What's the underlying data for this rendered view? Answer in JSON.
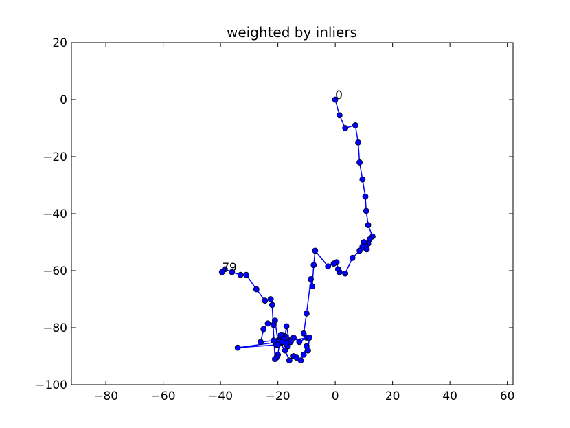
{
  "chart_data": {
    "type": "line",
    "title": "weighted by inliers",
    "xlabel": "",
    "ylabel": "",
    "xlim": [
      -92,
      62
    ],
    "ylim": [
      -100,
      20
    ],
    "xticks": [
      -80,
      -60,
      -40,
      -20,
      0,
      20,
      40,
      60
    ],
    "yticks": [
      20,
      0,
      -20,
      -40,
      -60,
      -80,
      -100
    ],
    "xtick_labels": [
      "−80",
      "−60",
      "−40",
      "−20",
      "0",
      "20",
      "40",
      "60"
    ],
    "ytick_labels": [
      "20",
      "0",
      "−20",
      "−40",
      "−60",
      "−80",
      "−100"
    ],
    "grid": false,
    "series": [
      {
        "line_color": "#0000ff",
        "marker_color": "#0000ff",
        "marker_edge": "#000000",
        "points": [
          [
            0,
            0
          ],
          [
            1.5,
            -5.5
          ],
          [
            3.5,
            -10
          ],
          [
            7,
            -9
          ],
          [
            8,
            -15
          ],
          [
            8.5,
            -22
          ],
          [
            9.5,
            -28
          ],
          [
            10.5,
            -34
          ],
          [
            10.8,
            -39
          ],
          [
            11.5,
            -44
          ],
          [
            13,
            -48
          ],
          [
            12,
            -49
          ],
          [
            11.5,
            -50.5
          ],
          [
            10.5,
            -51
          ],
          [
            10,
            -50
          ],
          [
            9.5,
            -51.5
          ],
          [
            11,
            -52.5
          ],
          [
            8.5,
            -53
          ],
          [
            6,
            -55.5
          ],
          [
            3.5,
            -61
          ],
          [
            1.5,
            -60.5
          ],
          [
            1,
            -59.5
          ],
          [
            0.5,
            -57
          ],
          [
            -0.5,
            -57.5
          ],
          [
            -2.5,
            -58.5
          ],
          [
            -7,
            -53
          ],
          [
            -7.5,
            -58
          ],
          [
            -8,
            -65.5
          ],
          [
            -8.5,
            -63
          ],
          [
            -10,
            -75
          ],
          [
            -11,
            -82
          ],
          [
            -10,
            -83.5
          ],
          [
            -12.5,
            -85
          ],
          [
            -14.5,
            -83.5
          ],
          [
            -16,
            -84.5
          ],
          [
            -17,
            -79.5
          ],
          [
            -17.5,
            -83
          ],
          [
            -18.5,
            -82.5
          ],
          [
            -19.5,
            -84
          ],
          [
            -21,
            -85
          ],
          [
            -20.5,
            -86
          ],
          [
            -19,
            -85.5
          ],
          [
            -17,
            -86
          ],
          [
            -15.5,
            -85
          ],
          [
            -18,
            -84
          ],
          [
            -16.5,
            -86.5
          ],
          [
            -20,
            -84.5
          ],
          [
            -21,
            -77.5
          ],
          [
            -21.5,
            -79
          ],
          [
            -23.5,
            -78.5
          ],
          [
            -25,
            -80.5
          ],
          [
            -26,
            -85
          ],
          [
            -21.5,
            -84.5
          ],
          [
            -19.5,
            -85
          ],
          [
            -17.5,
            -88
          ],
          [
            -16,
            -91.5
          ],
          [
            -14.5,
            -90
          ],
          [
            -13.5,
            -90.5
          ],
          [
            -12,
            -91.5
          ],
          [
            -11,
            -89.5
          ],
          [
            -10,
            -86.5
          ],
          [
            -9.5,
            -88
          ],
          [
            -9,
            -83.5
          ],
          [
            -34,
            -87
          ],
          [
            -20,
            -86
          ],
          [
            -18.5,
            -85
          ],
          [
            -17,
            -85.5
          ],
          [
            -19,
            -82.5
          ],
          [
            -20,
            -89.5
          ],
          [
            -20.5,
            -90.5
          ],
          [
            -21,
            -91
          ],
          [
            -22,
            -72
          ],
          [
            -22.5,
            -70
          ],
          [
            -24.5,
            -70.5
          ],
          [
            -27.5,
            -66.5
          ],
          [
            -31,
            -61.5
          ],
          [
            -33,
            -61.5
          ],
          [
            -36,
            -60.5
          ],
          [
            -38.5,
            -59.5
          ],
          [
            -39.5,
            -60.5
          ]
        ]
      }
    ],
    "annotations": [
      {
        "text": "0",
        "x": 0,
        "y": 0
      },
      {
        "text": "79",
        "x": -39.5,
        "y": -60.5
      }
    ]
  }
}
